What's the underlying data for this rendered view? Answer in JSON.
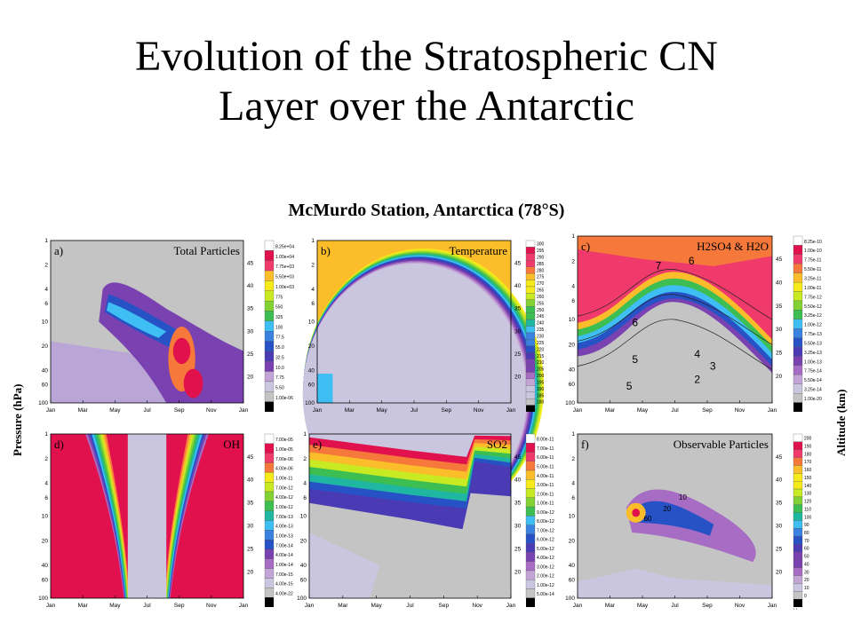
{
  "slide": {
    "title_line1": "Evolution of the Stratospheric CN",
    "title_line2": "Layer over the Antarctic",
    "subtitle": "McMurdo Station, Antarctica (78°S)",
    "left_axis_label": "Pressure (hPa)",
    "right_axis_label": "Altitude (km)",
    "page_mark": "' '"
  },
  "chart_data": [
    {
      "type": "heatmap",
      "panel_label": "a)",
      "title": "Total Particles",
      "x_ticks": [
        "Jan",
        "Mar",
        "May",
        "Jul",
        "Sep",
        "Nov",
        "Jan"
      ],
      "y_ticks": [
        "1",
        "2",
        "4",
        "6",
        "10",
        "20",
        "40",
        "60",
        "100"
      ],
      "alt_ticks": [
        "45",
        "40",
        "35",
        "30",
        "25",
        "20"
      ],
      "colorbar": [
        "8.25e+04",
        "1.00e+04",
        "7.75e+03",
        "5.50e+03",
        "1.00e+03",
        "775",
        "550",
        "325",
        "100",
        "77.5",
        "55.0",
        "32.5",
        "10.0",
        "7.75",
        "5.50",
        "1.00e-06"
      ]
    },
    {
      "type": "heatmap",
      "panel_label": "b)",
      "title": "Temperature",
      "x_ticks": [
        "Jan",
        "Mar",
        "May",
        "Jul",
        "Sep",
        "Nov",
        "Jan"
      ],
      "y_ticks": [
        "1",
        "2",
        "4",
        "6",
        "10",
        "20",
        "40",
        "60",
        "100"
      ],
      "alt_ticks": [
        "45",
        "40",
        "35",
        "30",
        "25",
        "20"
      ],
      "colorbar": [
        "300",
        "295",
        "290",
        "285",
        "280",
        "275",
        "270",
        "265",
        "260",
        "255",
        "250",
        "245",
        "240",
        "235",
        "230",
        "225",
        "220",
        "215",
        "210",
        "205",
        "200",
        "195",
        "190",
        "185",
        "180"
      ]
    },
    {
      "type": "heatmap",
      "panel_label": "c)",
      "title": "H2SO4 & H2O",
      "x_ticks": [
        "Jan",
        "Mar",
        "May",
        "Jul",
        "Sep",
        "Nov",
        "Jan"
      ],
      "y_ticks": [
        "1",
        "2",
        "4",
        "6",
        "10",
        "20",
        "40",
        "60",
        "100"
      ],
      "alt_ticks": [
        "45",
        "40",
        "35",
        "30",
        "25",
        "20"
      ],
      "contour_labels": [
        "7",
        "6",
        "6",
        "5",
        "5",
        "4",
        "3",
        "2"
      ],
      "colorbar": [
        "8.25e-10",
        "1.00e-10",
        "7.75e-11",
        "5.50e-11",
        "3.25e-11",
        "1.00e-11",
        "7.75e-12",
        "5.50e-12",
        "3.25e-12",
        "1.00e-12",
        "7.75e-13",
        "5.50e-13",
        "3.25e-13",
        "1.00e-13",
        "7.75e-14",
        "5.50e-14",
        "3.25e-14",
        "1.00e-20"
      ]
    },
    {
      "type": "heatmap",
      "panel_label": "d)",
      "title": "OH",
      "x_ticks": [
        "Jan",
        "Mar",
        "May",
        "Jul",
        "Sep",
        "Nov",
        "Jan"
      ],
      "y_ticks": [
        "1",
        "2",
        "4",
        "6",
        "10",
        "20",
        "40",
        "60",
        "100"
      ],
      "alt_ticks": [
        "45",
        "40",
        "35",
        "30",
        "25",
        "20"
      ],
      "colorbar": [
        "7.00e-05",
        "1.00e-05",
        "7.00e-06",
        "4.00e-06",
        "1.00e-11",
        "7.00e-12",
        "4.00e-12",
        "1.00e-12",
        "7.00e-13",
        "4.00e-13",
        "1.00e-13",
        "7.00e-14",
        "4.00e-14",
        "1.00e-14",
        "7.00e-15",
        "4.00e-15",
        "4.00e-22"
      ]
    },
    {
      "type": "heatmap",
      "panel_label": "e)",
      "title": "SO2",
      "x_ticks": [
        "Jan",
        "Mar",
        "May",
        "Jul",
        "Sep",
        "Nov",
        "Jan"
      ],
      "y_ticks": [
        "1",
        "2",
        "4",
        "6",
        "10",
        "20",
        "40",
        "60",
        "100"
      ],
      "alt_ticks": [
        "45",
        "40",
        "35",
        "30",
        "25",
        "20"
      ],
      "colorbar": [
        "8.00e-11",
        "7.00e-11",
        "6.00e-11",
        "5.00e-11",
        "4.00e-11",
        "3.00e-11",
        "2.00e-11",
        "1.00e-11",
        "9.00e-12",
        "8.00e-12",
        "7.00e-12",
        "6.00e-12",
        "5.00e-12",
        "4.00e-12",
        "3.00e-12",
        "2.00e-12",
        "1.00e-12",
        "5.00e-14"
      ]
    },
    {
      "type": "heatmap",
      "panel_label": "f)",
      "title": "Observable Particles",
      "x_ticks": [
        "Jan",
        "Mar",
        "May",
        "Jul",
        "Sep",
        "Nov",
        "Jan"
      ],
      "y_ticks": [
        "1",
        "2",
        "4",
        "6",
        "10",
        "20",
        "40",
        "60",
        "100"
      ],
      "alt_ticks": [
        "45",
        "40",
        "35",
        "30",
        "25",
        "20"
      ],
      "contour_labels": [
        "10",
        "20",
        "60"
      ],
      "colorbar": [
        "200",
        "190",
        "180",
        "170",
        "160",
        "150",
        "140",
        "130",
        "120",
        "110",
        "100",
        "90",
        "80",
        "70",
        "60",
        "50",
        "40",
        "30",
        "20",
        "10",
        "0"
      ]
    }
  ],
  "colors": {
    "particle_scale": [
      "#ffffff",
      "#e0114c",
      "#f03a6c",
      "#f6783a",
      "#fbbe2a",
      "#f6ea18",
      "#c8ea22",
      "#82d234",
      "#3cbe52",
      "#1fb6a2",
      "#3ebef2",
      "#3a82e0",
      "#2652c6",
      "#4a3ab4",
      "#7a42b0",
      "#a76cc4",
      "#c3a4d6",
      "#cbc6e0",
      "#c4c4c4",
      "#000000"
    ],
    "grey_bg": "#c4c4c4"
  }
}
